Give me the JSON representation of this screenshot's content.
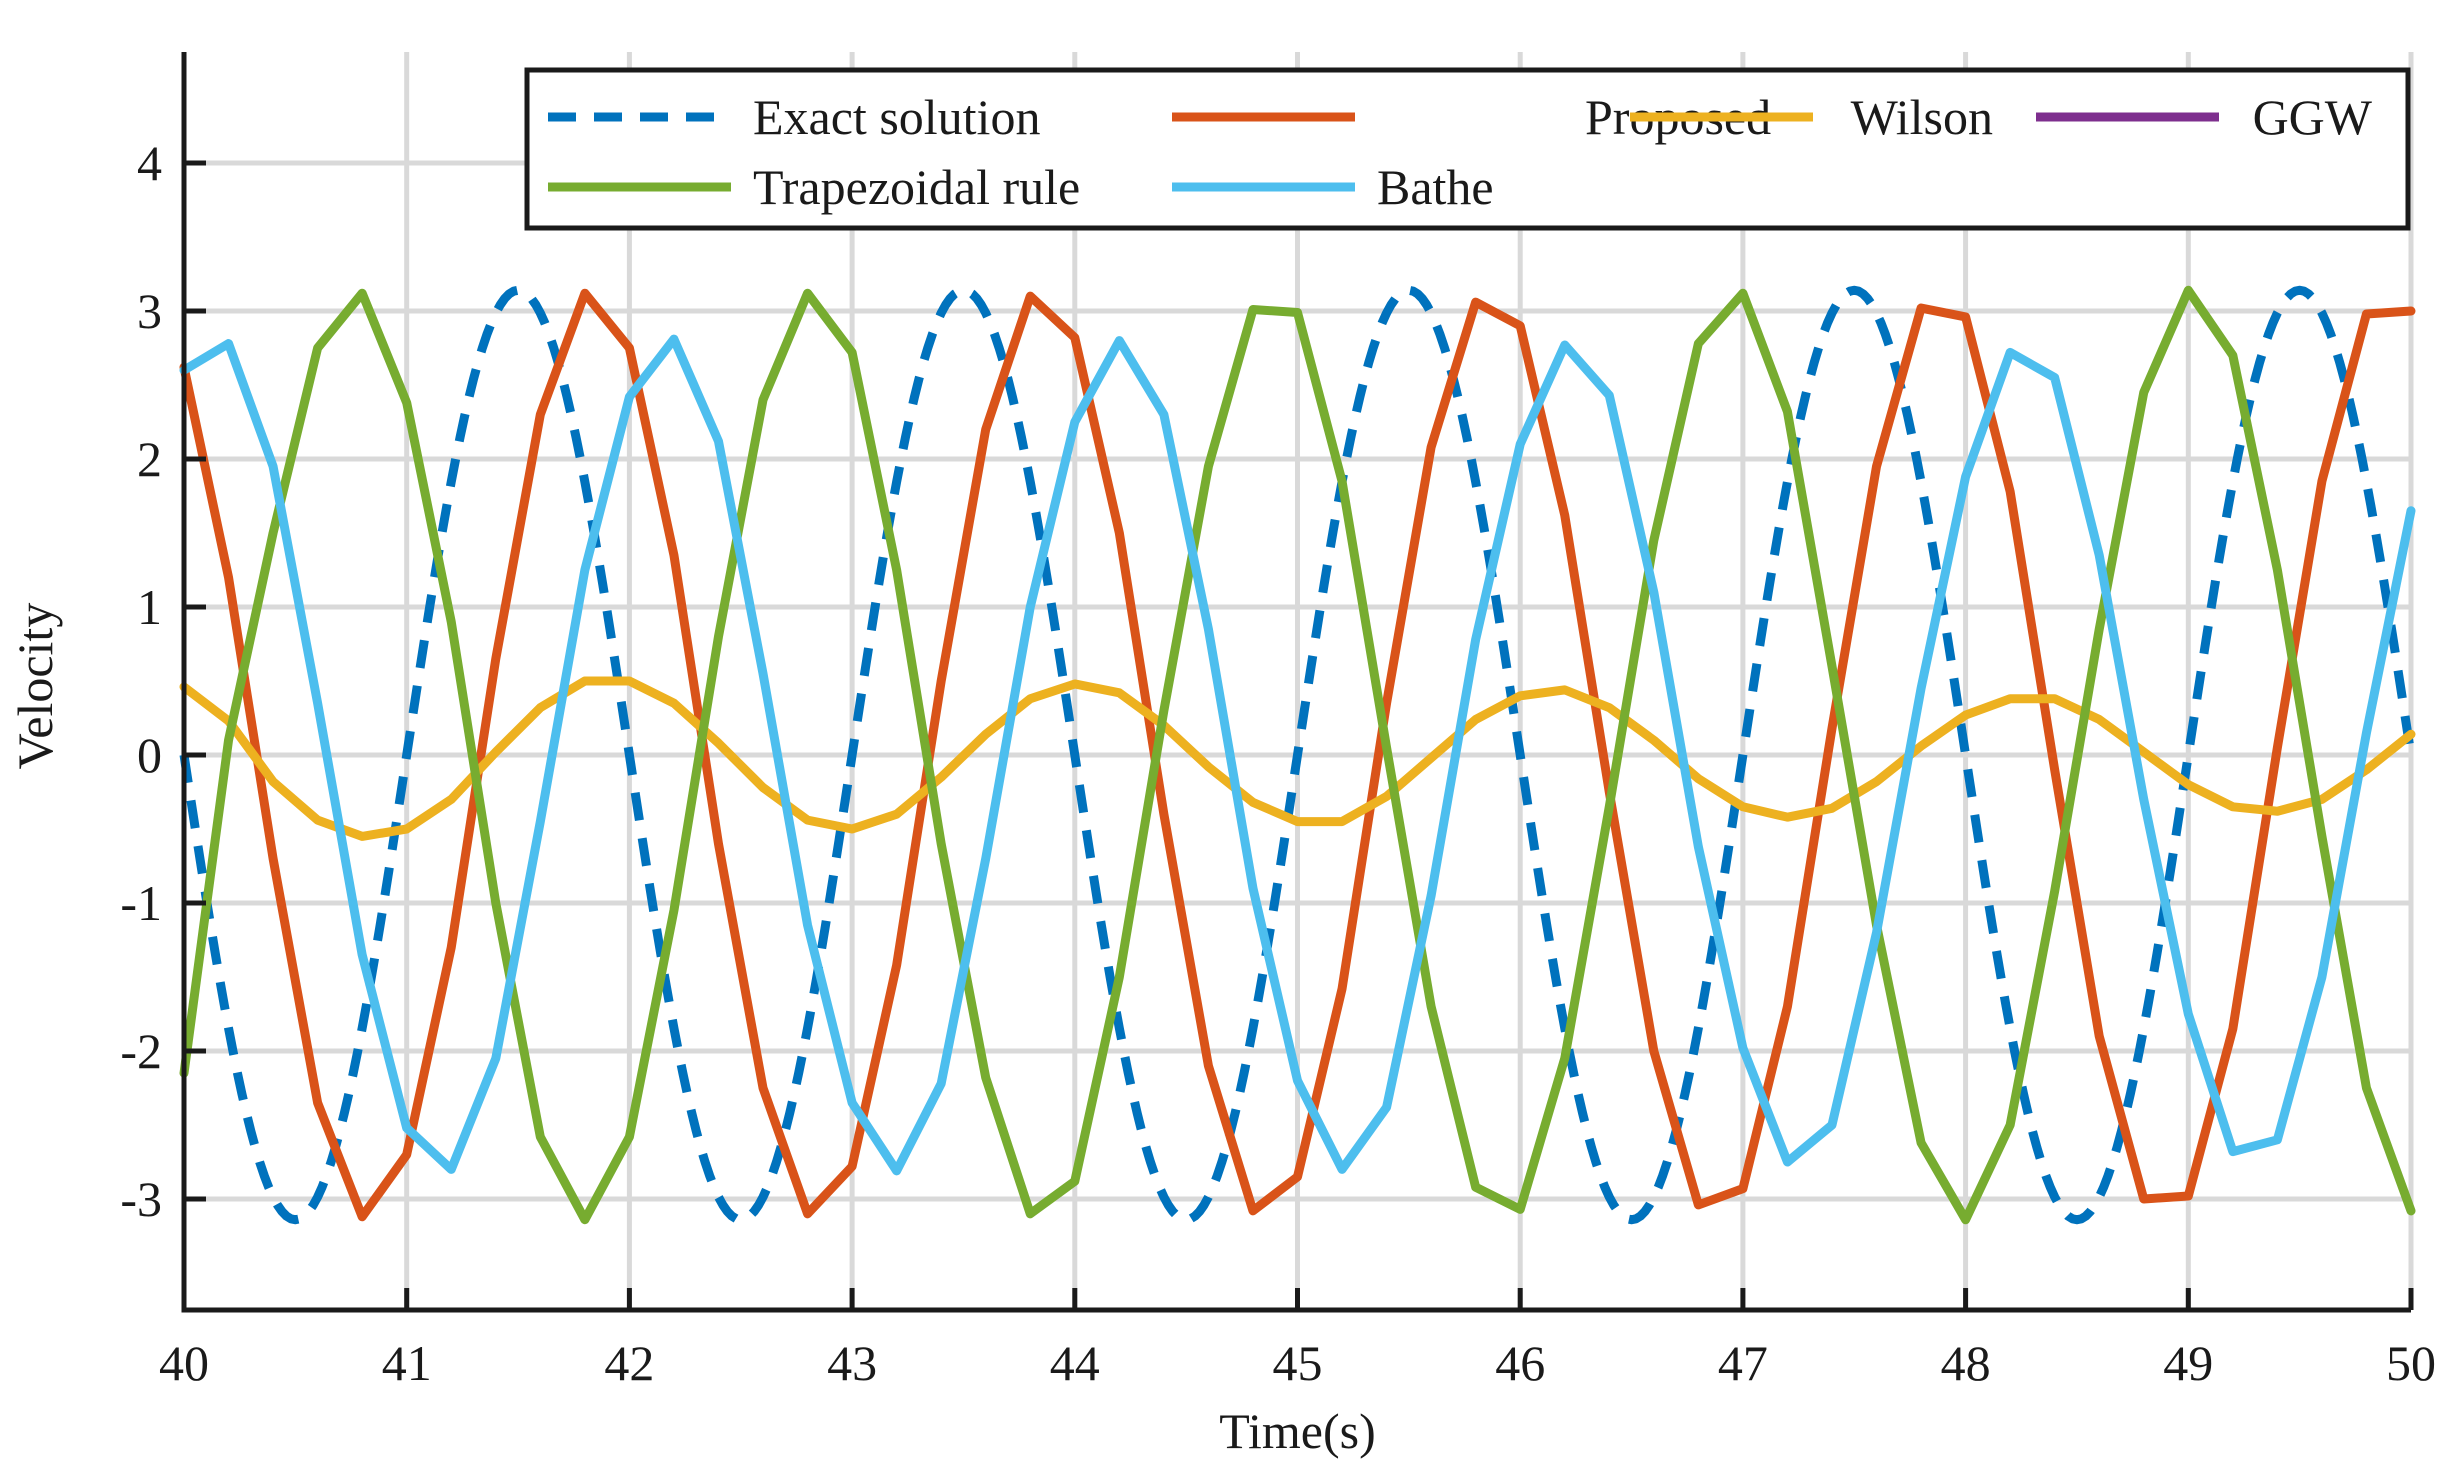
{
  "chart_data": {
    "type": "line",
    "title": "",
    "xlabel": "Time(s)",
    "ylabel": "Velocity",
    "xlim": [
      40,
      50
    ],
    "ylim": [
      -3.75,
      4.75
    ],
    "xticks": [
      40,
      41,
      42,
      43,
      44,
      45,
      46,
      47,
      48,
      49,
      50
    ],
    "yticks": [
      -3,
      -2,
      -1,
      0,
      1,
      2,
      3,
      4
    ],
    "grid": true,
    "legend_position": "top-right",
    "series": [
      {
        "name": "Exact solution",
        "color": "#0072BD",
        "style": "dashed",
        "kind": "sine",
        "amplitude": 3.14,
        "period": 2.0,
        "zero_crossing": 40.0,
        "rising_first": false,
        "sample_step": 0.02
      },
      {
        "name": "Proposed",
        "color": "#D95319",
        "style": "solid",
        "points": [
          [
            40.0,
            2.62
          ],
          [
            40.2,
            1.2
          ],
          [
            40.4,
            -0.7
          ],
          [
            40.6,
            -2.35
          ],
          [
            40.8,
            -3.12
          ],
          [
            41.0,
            -2.7
          ],
          [
            41.2,
            -1.3
          ],
          [
            41.4,
            0.65
          ],
          [
            41.6,
            2.3
          ],
          [
            41.8,
            3.12
          ],
          [
            42.0,
            2.75
          ],
          [
            42.2,
            1.35
          ],
          [
            42.4,
            -0.6
          ],
          [
            42.6,
            -2.25
          ],
          [
            42.8,
            -3.1
          ],
          [
            43.0,
            -2.78
          ],
          [
            43.2,
            -1.42
          ],
          [
            43.4,
            0.5
          ],
          [
            43.6,
            2.2
          ],
          [
            43.8,
            3.1
          ],
          [
            44.0,
            2.82
          ],
          [
            44.2,
            1.5
          ],
          [
            44.4,
            -0.4
          ],
          [
            44.6,
            -2.1
          ],
          [
            44.8,
            -3.08
          ],
          [
            45.0,
            -2.85
          ],
          [
            45.2,
            -1.58
          ],
          [
            45.4,
            0.35
          ],
          [
            45.6,
            2.08
          ],
          [
            45.8,
            3.06
          ],
          [
            46.0,
            2.9
          ],
          [
            46.2,
            1.62
          ],
          [
            46.4,
            -0.25
          ],
          [
            46.6,
            -2.0
          ],
          [
            46.8,
            -3.04
          ],
          [
            47.0,
            -2.93
          ],
          [
            47.2,
            -1.7
          ],
          [
            47.4,
            0.18
          ],
          [
            47.6,
            1.95
          ],
          [
            47.8,
            3.02
          ],
          [
            48.0,
            2.96
          ],
          [
            48.2,
            1.78
          ],
          [
            48.4,
            -0.1
          ],
          [
            48.6,
            -1.9
          ],
          [
            48.8,
            -3.0
          ],
          [
            49.0,
            -2.98
          ],
          [
            49.2,
            -1.85
          ],
          [
            49.4,
            0.05
          ],
          [
            49.6,
            1.85
          ],
          [
            49.8,
            2.98
          ],
          [
            50.0,
            3.0
          ]
        ]
      },
      {
        "name": "Wilson",
        "color": "#EDB120",
        "style": "solid",
        "points": [
          [
            40.0,
            0.46
          ],
          [
            40.2,
            0.23
          ],
          [
            40.4,
            -0.18
          ],
          [
            40.6,
            -0.44
          ],
          [
            40.8,
            -0.55
          ],
          [
            41.0,
            -0.5
          ],
          [
            41.2,
            -0.3
          ],
          [
            41.4,
            0.02
          ],
          [
            41.6,
            0.32
          ],
          [
            41.8,
            0.5
          ],
          [
            42.0,
            0.5
          ],
          [
            42.2,
            0.35
          ],
          [
            42.4,
            0.08
          ],
          [
            42.6,
            -0.22
          ],
          [
            42.8,
            -0.44
          ],
          [
            43.0,
            -0.5
          ],
          [
            43.2,
            -0.4
          ],
          [
            43.4,
            -0.15
          ],
          [
            43.6,
            0.14
          ],
          [
            43.8,
            0.38
          ],
          [
            44.0,
            0.48
          ],
          [
            44.2,
            0.42
          ],
          [
            44.4,
            0.2
          ],
          [
            44.6,
            -0.08
          ],
          [
            44.8,
            -0.32
          ],
          [
            45.0,
            -0.45
          ],
          [
            45.2,
            -0.45
          ],
          [
            45.4,
            -0.28
          ],
          [
            45.6,
            -0.02
          ],
          [
            45.8,
            0.24
          ],
          [
            46.0,
            0.4
          ],
          [
            46.2,
            0.44
          ],
          [
            46.4,
            0.32
          ],
          [
            46.6,
            0.1
          ],
          [
            46.8,
            -0.16
          ],
          [
            47.0,
            -0.35
          ],
          [
            47.2,
            -0.42
          ],
          [
            47.4,
            -0.36
          ],
          [
            47.6,
            -0.18
          ],
          [
            47.8,
            0.06
          ],
          [
            48.0,
            0.27
          ],
          [
            48.2,
            0.38
          ],
          [
            48.4,
            0.38
          ],
          [
            48.6,
            0.24
          ],
          [
            48.8,
            0.02
          ],
          [
            49.0,
            -0.2
          ],
          [
            49.2,
            -0.35
          ],
          [
            49.4,
            -0.38
          ],
          [
            49.6,
            -0.3
          ],
          [
            49.8,
            -0.1
          ],
          [
            50.0,
            0.14
          ]
        ]
      },
      {
        "name": "GGW",
        "color": "#7E2F8E",
        "style": "solid",
        "points": []
      },
      {
        "name": "Trapezoidal rule",
        "color": "#77AC30",
        "style": "solid",
        "points": [
          [
            40.0,
            -2.15
          ],
          [
            40.2,
            0.1
          ],
          [
            40.4,
            1.5
          ],
          [
            40.6,
            2.75
          ],
          [
            40.8,
            3.12
          ],
          [
            41.0,
            2.38
          ],
          [
            41.2,
            0.9
          ],
          [
            41.4,
            -1.0
          ],
          [
            41.6,
            -2.58
          ],
          [
            41.8,
            -3.14
          ],
          [
            42.0,
            -2.58
          ],
          [
            42.2,
            -1.05
          ],
          [
            42.4,
            0.8
          ],
          [
            42.6,
            2.4
          ],
          [
            42.8,
            3.12
          ],
          [
            43.0,
            2.72
          ],
          [
            43.2,
            1.25
          ],
          [
            43.4,
            -0.6
          ],
          [
            43.6,
            -2.18
          ],
          [
            43.8,
            -3.1
          ],
          [
            44.0,
            -2.88
          ],
          [
            44.2,
            -1.5
          ],
          [
            44.4,
            0.3
          ],
          [
            44.6,
            1.95
          ],
          [
            44.8,
            3.01
          ],
          [
            45.0,
            2.99
          ],
          [
            45.2,
            1.85
          ],
          [
            45.4,
            0.05
          ],
          [
            45.6,
            -1.7
          ],
          [
            45.8,
            -2.92
          ],
          [
            46.0,
            -3.07
          ],
          [
            46.2,
            -2.05
          ],
          [
            46.4,
            -0.35
          ],
          [
            46.6,
            1.45
          ],
          [
            46.8,
            2.78
          ],
          [
            47.0,
            3.12
          ],
          [
            47.2,
            2.32
          ],
          [
            47.4,
            0.6
          ],
          [
            47.6,
            -1.15
          ],
          [
            47.8,
            -2.62
          ],
          [
            48.0,
            -3.14
          ],
          [
            48.2,
            -2.5
          ],
          [
            48.4,
            -0.92
          ],
          [
            48.6,
            0.85
          ],
          [
            48.8,
            2.45
          ],
          [
            49.0,
            3.14
          ],
          [
            49.2,
            2.7
          ],
          [
            49.4,
            1.25
          ],
          [
            49.6,
            -0.55
          ],
          [
            49.8,
            -2.25
          ],
          [
            50.0,
            -3.08
          ]
        ]
      },
      {
        "name": "Bathe",
        "color": "#4DBEEE",
        "style": "solid",
        "points": [
          [
            40.0,
            2.6
          ],
          [
            40.2,
            2.78
          ],
          [
            40.4,
            1.95
          ],
          [
            40.6,
            0.35
          ],
          [
            40.8,
            -1.35
          ],
          [
            41.0,
            -2.52
          ],
          [
            41.2,
            -2.8
          ],
          [
            41.4,
            -2.05
          ],
          [
            41.6,
            -0.45
          ],
          [
            41.8,
            1.25
          ],
          [
            42.0,
            2.42
          ],
          [
            42.2,
            2.81
          ],
          [
            42.4,
            2.12
          ],
          [
            42.6,
            0.55
          ],
          [
            42.8,
            -1.15
          ],
          [
            43.0,
            -2.35
          ],
          [
            43.2,
            -2.81
          ],
          [
            43.4,
            -2.22
          ],
          [
            43.6,
            -0.7
          ],
          [
            43.8,
            1.0
          ],
          [
            44.0,
            2.25
          ],
          [
            44.2,
            2.8
          ],
          [
            44.4,
            2.3
          ],
          [
            44.6,
            0.85
          ],
          [
            44.8,
            -0.9
          ],
          [
            45.0,
            -2.2
          ],
          [
            45.2,
            -2.8
          ],
          [
            45.4,
            -2.38
          ],
          [
            45.6,
            -0.95
          ],
          [
            45.8,
            0.78
          ],
          [
            46.0,
            2.1
          ],
          [
            46.2,
            2.77
          ],
          [
            46.4,
            2.43
          ],
          [
            46.6,
            1.1
          ],
          [
            46.8,
            -0.62
          ],
          [
            47.0,
            -1.98
          ],
          [
            47.2,
            -2.75
          ],
          [
            47.4,
            -2.5
          ],
          [
            47.6,
            -1.2
          ],
          [
            47.8,
            0.45
          ],
          [
            48.0,
            1.88
          ],
          [
            48.2,
            2.72
          ],
          [
            48.4,
            2.55
          ],
          [
            48.6,
            1.35
          ],
          [
            48.8,
            -0.3
          ],
          [
            49.0,
            -1.75
          ],
          [
            49.2,
            -2.68
          ],
          [
            49.4,
            -2.6
          ],
          [
            49.6,
            -1.5
          ],
          [
            49.8,
            0.15
          ],
          [
            50.0,
            1.65
          ]
        ]
      }
    ]
  }
}
